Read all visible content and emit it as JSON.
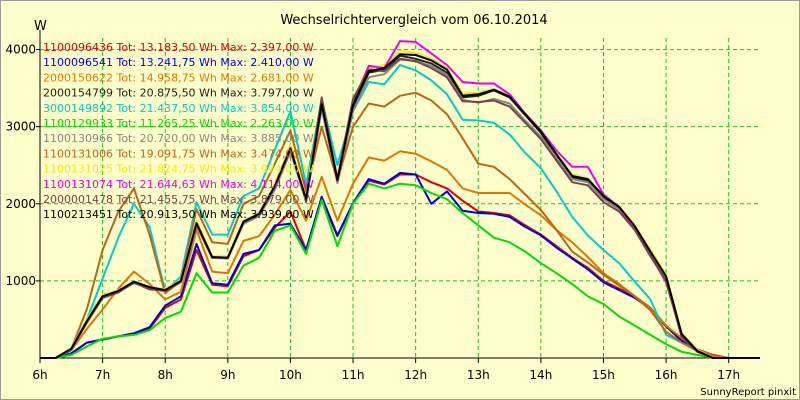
{
  "chart_data": {
    "type": "line",
    "title": "Wechselrichtervergleich vom 06.10.2014",
    "ylabel": "W",
    "footer": "SunnyReport pinxit",
    "x_hours": [
      6,
      6.25,
      6.5,
      6.75,
      7,
      7.25,
      7.5,
      7.75,
      8,
      8.25,
      8.5,
      8.75,
      9,
      9.25,
      9.5,
      9.75,
      10,
      10.25,
      10.5,
      10.75,
      11,
      11.25,
      11.5,
      11.75,
      12,
      12.25,
      12.5,
      12.75,
      13,
      13.25,
      13.5,
      13.75,
      14,
      14.25,
      14.5,
      14.75,
      15,
      15.25,
      15.5,
      15.75,
      16,
      16.25,
      16.5,
      16.75,
      17,
      17.25,
      17.5
    ],
    "x_ticks": [
      "6h",
      "7h",
      "8h",
      "9h",
      "10h",
      "11h",
      "12h",
      "13h",
      "14h",
      "15h",
      "16h",
      "17h"
    ],
    "y_ticks": [
      1000,
      2000,
      3000,
      4000
    ],
    "ylim": [
      0,
      4150
    ],
    "xlim": [
      6,
      17.5
    ],
    "grid": true,
    "series": [
      {
        "name": "1100096436 Tot: 13.183,50 Wh Max: 2.397,00 W",
        "color": "#dd0000",
        "values": [
          0,
          0,
          60,
          200,
          240,
          280,
          320,
          380,
          650,
          760,
          1400,
          950,
          930,
          1320,
          1400,
          1690,
          1900,
          1400,
          2060,
          1580,
          2000,
          2300,
          2250,
          2380,
          2380,
          2280,
          2200,
          2040,
          1900,
          1880,
          1850,
          1720,
          1600,
          1450,
          1300,
          1170,
          1000,
          900,
          800,
          650,
          420,
          230,
          110,
          40,
          0,
          0,
          0
        ]
      },
      {
        "name": "1100096541 Tot: 13.241,75 Wh Max: 2.410,00 W",
        "color": "#0000dd",
        "values": [
          0,
          0,
          60,
          200,
          240,
          280,
          320,
          400,
          680,
          800,
          1480,
          970,
          950,
          1350,
          1400,
          1720,
          1740,
          1400,
          2090,
          1590,
          2010,
          2320,
          2260,
          2400,
          2380,
          2000,
          2160,
          1910,
          1880,
          1870,
          1830,
          1700,
          1590,
          1430,
          1290,
          1150,
          980,
          880,
          780,
          640,
          410,
          220,
          100,
          30,
          0,
          0,
          0
        ]
      },
      {
        "name": "2000150622 Tot: 14.958,75 Wh Max: 2.681,00 W",
        "color": "#dd7700",
        "values": [
          0,
          0,
          100,
          380,
          630,
          900,
          1120,
          960,
          760,
          860,
          1660,
          1120,
          1100,
          1520,
          1580,
          1860,
          2180,
          1780,
          2350,
          1780,
          2260,
          2600,
          2560,
          2680,
          2650,
          2550,
          2440,
          2200,
          2140,
          2140,
          2140,
          1990,
          1850,
          1660,
          1500,
          1310,
          1100,
          960,
          800,
          640,
          420,
          260,
          110,
          30,
          0,
          0,
          0
        ]
      },
      {
        "name": "2000154799 Tot: 20.875,50 Wh Max: 3.797,00 W",
        "color": "#222222",
        "values": [
          0,
          0,
          120,
          480,
          800,
          860,
          980,
          900,
          880,
          990,
          1740,
          1300,
          1300,
          1760,
          1860,
          2220,
          2700,
          2050,
          3280,
          2300,
          3250,
          3700,
          3740,
          3920,
          3880,
          3820,
          3700,
          3380,
          3400,
          3470,
          3380,
          3150,
          2920,
          2620,
          2340,
          2300,
          2080,
          1950,
          1700,
          1360,
          1040,
          300,
          90,
          0,
          0,
          0,
          0
        ]
      },
      {
        "name": "3000149892 Tot: 21.437,50 Wh Max: 3.854,00 W",
        "color": "#00cccc",
        "values": [
          0,
          0,
          100,
          500,
          1030,
          1560,
          2000,
          1700,
          860,
          1060,
          2020,
          1600,
          1600,
          2100,
          2200,
          2700,
          3200,
          2250,
          3350,
          2500,
          3200,
          3580,
          3550,
          3800,
          3730,
          3600,
          3420,
          3090,
          3080,
          3050,
          2900,
          2660,
          2460,
          2160,
          1830,
          1590,
          1400,
          1230,
          990,
          760,
          300,
          200,
          100,
          0,
          0,
          0,
          0
        ]
      },
      {
        "name": "1100129933 Tot: 11.265,25 Wh Max: 2.263,00 W",
        "color": "#00dd00",
        "values": [
          0,
          0,
          40,
          150,
          250,
          280,
          300,
          360,
          520,
          600,
          1100,
          850,
          850,
          1200,
          1300,
          1650,
          1720,
          1350,
          2050,
          1450,
          2000,
          2260,
          2200,
          2260,
          2240,
          2140,
          2060,
          1880,
          1720,
          1560,
          1500,
          1380,
          1230,
          1100,
          960,
          800,
          700,
          540,
          420,
          300,
          180,
          80,
          40,
          0,
          0,
          0,
          0
        ]
      },
      {
        "name": "1100130966 Tot: 20.720,00 Wh Max: 3.885,00 W",
        "color": "#888888",
        "values": [
          0,
          0,
          110,
          470,
          790,
          860,
          970,
          900,
          870,
          980,
          1710,
          1300,
          1290,
          1740,
          1840,
          2180,
          2680,
          2030,
          3230,
          2270,
          3200,
          3640,
          3680,
          3870,
          3850,
          3790,
          3670,
          3350,
          3310,
          3360,
          3300,
          3080,
          2870,
          2600,
          2320,
          2280,
          2060,
          1930,
          1690,
          1350,
          1020,
          280,
          80,
          0,
          0,
          0,
          0
        ]
      },
      {
        "name": "1100131006 Tot: 19.091,75 Wh Max: 3.474,00 W",
        "color": "#bb6611",
        "values": [
          0,
          0,
          120,
          640,
          1400,
          1900,
          2200,
          1600,
          840,
          1000,
          1930,
          1500,
          1480,
          2000,
          2100,
          2520,
          2950,
          2160,
          3000,
          2300,
          3000,
          3300,
          3260,
          3400,
          3440,
          3340,
          3160,
          2850,
          2520,
          2480,
          2320,
          2120,
          1920,
          1660,
          1380,
          1240,
          1080,
          940,
          800,
          620,
          340,
          200,
          90,
          0,
          0,
          0,
          0
        ]
      },
      {
        "name": "1100131025 Tot: 21.824,75 Wh Max: 3.974,00 W",
        "color": "#eeee00",
        "values": [
          0,
          0,
          130,
          500,
          820,
          880,
          990,
          920,
          890,
          1010,
          1780,
          1320,
          1320,
          1780,
          1880,
          2250,
          2760,
          2080,
          3330,
          2340,
          3300,
          3740,
          3800,
          3980,
          3960,
          3880,
          3760,
          3430,
          3440,
          3490,
          3400,
          3170,
          2950,
          2650,
          2380,
          2330,
          2100,
          1970,
          1720,
          1400,
          1080,
          320,
          100,
          0,
          0,
          0,
          0
        ]
      },
      {
        "name": "1100131074 Tot: 21.644,63 Wh Max: 4.114,00 W",
        "color": "#ee00ee",
        "values": [
          0,
          0,
          120,
          480,
          800,
          860,
          990,
          910,
          880,
          1000,
          1740,
          1300,
          1300,
          1760,
          1860,
          2220,
          2700,
          2050,
          3300,
          2300,
          3300,
          3790,
          3760,
          4110,
          4100,
          3950,
          3800,
          3580,
          3560,
          3560,
          3420,
          3170,
          2950,
          2690,
          2480,
          2480,
          2120,
          1960,
          1680,
          1340,
          980,
          300,
          90,
          0,
          0,
          0,
          0
        ]
      },
      {
        "name": "2000001478 Tot: 21.455,75 Wh Max: 3.879,00 W",
        "color": "#774444",
        "values": [
          0,
          0,
          110,
          460,
          780,
          850,
          980,
          890,
          870,
          990,
          1740,
          1300,
          1300,
          1760,
          1860,
          2220,
          2700,
          2050,
          3380,
          2320,
          3360,
          3740,
          3720,
          3880,
          3850,
          3760,
          3640,
          3330,
          3320,
          3340,
          3260,
          3050,
          2840,
          2560,
          2280,
          2240,
          2020,
          1900,
          1660,
          1320,
          1000,
          270,
          80,
          0,
          0,
          0,
          0
        ]
      },
      {
        "name": "1100213451 Tot: 20.913,50 Wh Max: 3.939,00 W",
        "color": "#000000",
        "values": [
          0,
          0,
          120,
          480,
          800,
          870,
          990,
          920,
          880,
          1000,
          1750,
          1310,
          1300,
          1770,
          1870,
          2230,
          2720,
          2060,
          3290,
          2310,
          3280,
          3720,
          3760,
          3940,
          3930,
          3860,
          3740,
          3400,
          3420,
          3480,
          3390,
          3160,
          2940,
          2640,
          2360,
          2320,
          2100,
          1960,
          1710,
          1380,
          1060,
          310,
          90,
          0,
          0,
          0,
          0
        ]
      }
    ]
  }
}
